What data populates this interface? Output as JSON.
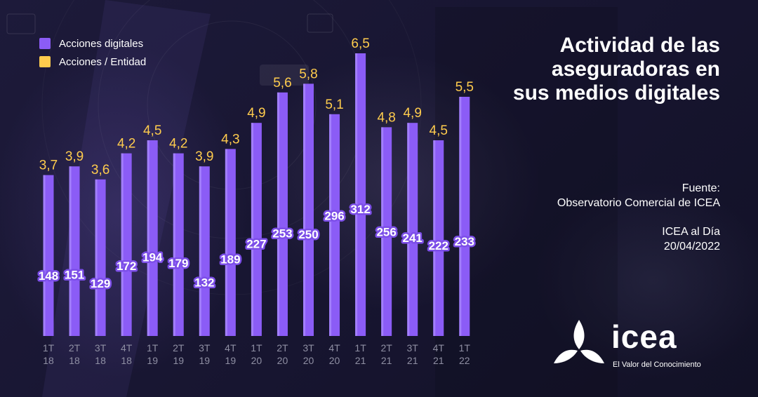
{
  "header": {
    "title": "Actividad de las aseguradoras en sus medios digitales"
  },
  "source": {
    "label": "Fuente:",
    "name": "Observatorio Comercial de ICEA"
  },
  "publication": {
    "name": "ICEA al Día",
    "date": "20/04/2022"
  },
  "logo": {
    "word": "icea",
    "tagline": "El Valor del Conocimiento"
  },
  "colors": {
    "bar": "#8b5cf6",
    "bar_light": "#b69cff",
    "ratio": "#ffcc4d",
    "background": "#191733"
  },
  "legend": [
    {
      "label": "Acciones digitales",
      "color": "#8b5cf6"
    },
    {
      "label": "Acciones / Entidad",
      "color": "#ffcc4d"
    }
  ],
  "chart_data": {
    "type": "bar",
    "categories": [
      [
        "1T",
        "18"
      ],
      [
        "2T",
        "18"
      ],
      [
        "3T",
        "18"
      ],
      [
        "4T",
        "18"
      ],
      [
        "1T",
        "19"
      ],
      [
        "2T",
        "19"
      ],
      [
        "3T",
        "19"
      ],
      [
        "4T",
        "19"
      ],
      [
        "1T",
        "20"
      ],
      [
        "2T",
        "20"
      ],
      [
        "3T",
        "20"
      ],
      [
        "4T",
        "20"
      ],
      [
        "1T",
        "21"
      ],
      [
        "2T",
        "21"
      ],
      [
        "3T",
        "21"
      ],
      [
        "4T",
        "21"
      ],
      [
        "1T",
        "22"
      ]
    ],
    "series": [
      {
        "name": "Acciones digitales",
        "values": [
          148,
          151,
          129,
          172,
          194,
          179,
          132,
          189,
          227,
          253,
          250,
          296,
          312,
          256,
          241,
          222,
          233
        ]
      },
      {
        "name": "Acciones / Entidad",
        "values": [
          "3,7",
          "3,9",
          "3,6",
          "4,2",
          "4,5",
          "4,2",
          "3,9",
          "4,3",
          "4,9",
          "5,6",
          "5,8",
          "5,1",
          "6,5",
          "4,8",
          "4,9",
          "4,5",
          "5,5"
        ]
      }
    ],
    "bar_heights_from": "Acciones / Entidad",
    "ylim": [
      0,
      7
    ],
    "grid": false,
    "legend_position": "top-left"
  }
}
